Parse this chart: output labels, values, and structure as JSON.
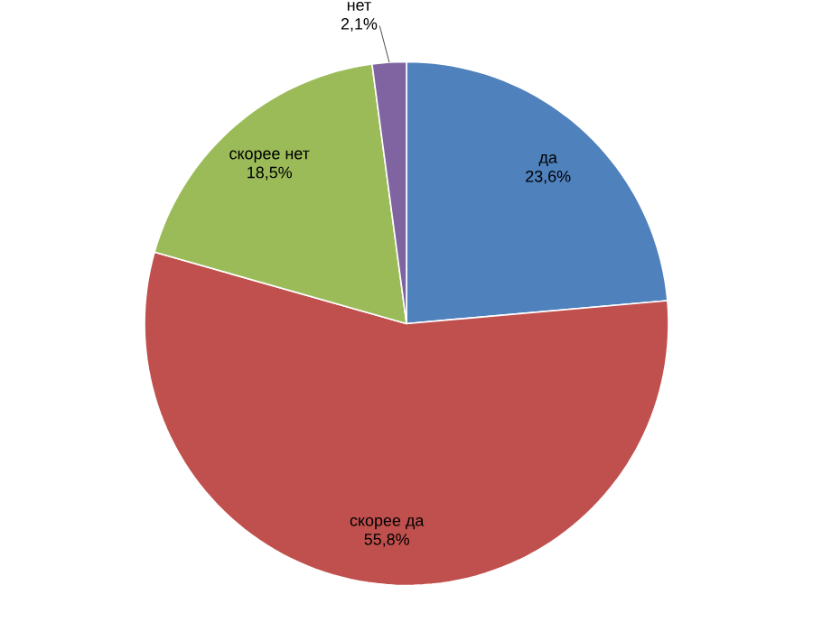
{
  "chart_data": {
    "type": "pie",
    "categories": [
      "да",
      "скорее да",
      "скорее нет",
      "нет"
    ],
    "values": [
      23.6,
      55.8,
      18.5,
      2.1
    ],
    "value_labels": [
      "23,6%",
      "55,8%",
      "18,5%",
      "2,1%"
    ],
    "colors": [
      "#4f81bd",
      "#c0504d",
      "#9bbb59",
      "#8064a2"
    ]
  }
}
